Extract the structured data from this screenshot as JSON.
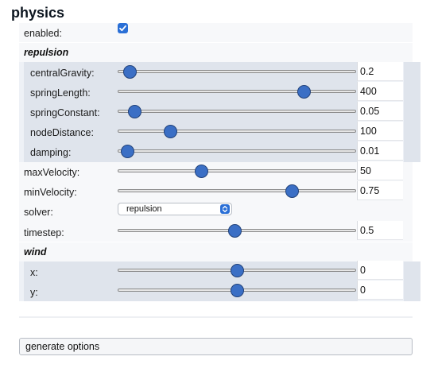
{
  "title": "physics",
  "enabled": {
    "label": "enabled:",
    "checked": true
  },
  "repulsion": {
    "section_label": "repulsion",
    "items": [
      {
        "label": "centralGravity:",
        "value": "0.2",
        "position": 0.05
      },
      {
        "label": "springLength:",
        "value": "400",
        "position": 0.78
      },
      {
        "label": "springConstant:",
        "value": "0.05",
        "position": 0.07
      },
      {
        "label": "nodeDistance:",
        "value": "100",
        "position": 0.22
      },
      {
        "label": "damping:",
        "value": "0.01",
        "position": 0.04
      }
    ]
  },
  "general": [
    {
      "label": "maxVelocity:",
      "value": "50",
      "position": 0.35
    },
    {
      "label": "minVelocity:",
      "value": "0.75",
      "position": 0.73
    }
  ],
  "solver": {
    "label": "solver:",
    "value": "repulsion"
  },
  "timestep": {
    "label": "timestep:",
    "value": "0.5",
    "position": 0.49
  },
  "wind": {
    "section_label": "wind",
    "items": [
      {
        "label": "x:",
        "value": "0",
        "position": 0.5
      },
      {
        "label": "y:",
        "value": "0",
        "position": 0.5
      }
    ]
  },
  "generate_button": {
    "label": "generate options"
  },
  "colors": {
    "accent": "#2a6fd6",
    "slider_thumb": "#3b6fc5",
    "group_bg": "#dfe4ec"
  }
}
